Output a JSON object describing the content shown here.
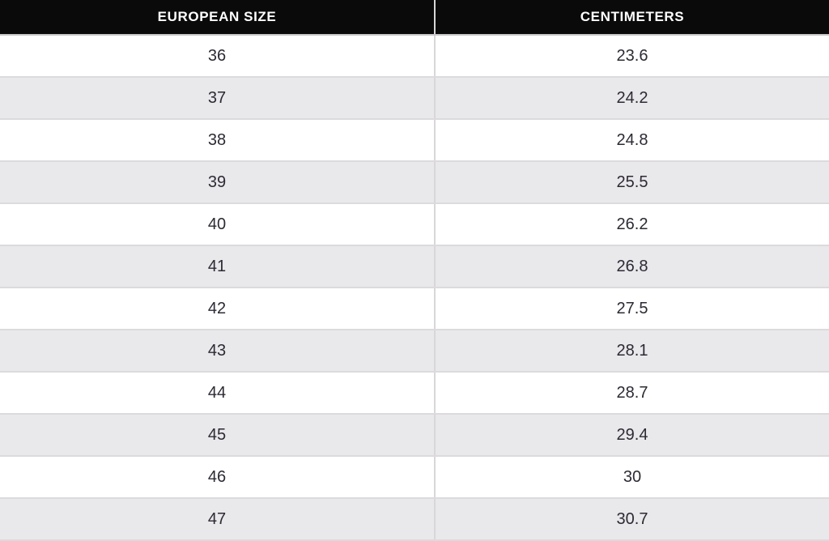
{
  "colors": {
    "header_bg": "#0a0a0a",
    "header_text": "#ffffff",
    "row_bg": "#ffffff",
    "row_alt_bg": "#e9e8ea",
    "divider": "#d8d6d9",
    "cell_text": "#2d2a34"
  },
  "chart_data": {
    "type": "table",
    "columns": [
      "EUROPEAN SIZE",
      "CENTIMETERS"
    ],
    "rows": [
      [
        36,
        23.6
      ],
      [
        37,
        24.2
      ],
      [
        38,
        24.8
      ],
      [
        39,
        25.5
      ],
      [
        40,
        26.2
      ],
      [
        41,
        26.8
      ],
      [
        42,
        27.5
      ],
      [
        43,
        28.1
      ],
      [
        44,
        28.7
      ],
      [
        45,
        29.4
      ],
      [
        46,
        30
      ],
      [
        47,
        30.7
      ]
    ],
    "layout": {
      "header_style": "black background, white bold uppercase text",
      "zebra_striping": "odd rows white, even rows light gray",
      "alignment": "center",
      "last_row_clipped": true
    }
  }
}
